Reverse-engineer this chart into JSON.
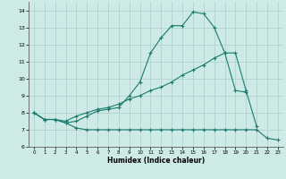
{
  "xlabel": "Humidex (Indice chaleur)",
  "x": [
    0,
    1,
    2,
    3,
    4,
    5,
    6,
    7,
    8,
    9,
    10,
    11,
    12,
    13,
    14,
    15,
    16,
    17,
    18,
    19,
    20,
    21,
    22,
    23
  ],
  "line1_y": [
    8.0,
    7.6,
    7.6,
    7.4,
    7.1,
    7.0,
    7.0,
    7.0,
    7.0,
    7.0,
    7.0,
    7.0,
    7.0,
    7.0,
    7.0,
    7.0,
    7.0,
    7.0,
    7.0,
    7.0,
    7.0,
    7.0,
    6.5,
    6.4
  ],
  "line2_y": [
    8.0,
    7.6,
    7.6,
    7.4,
    7.5,
    7.8,
    8.1,
    8.2,
    8.3,
    9.0,
    9.8,
    11.5,
    12.4,
    13.1,
    13.1,
    13.9,
    13.8,
    13.0,
    11.5,
    11.5,
    9.3,
    7.2,
    null,
    null
  ],
  "line3_y": [
    8.0,
    7.6,
    7.6,
    7.5,
    7.8,
    8.0,
    8.2,
    8.3,
    8.5,
    8.8,
    9.0,
    9.3,
    9.5,
    9.8,
    10.2,
    10.5,
    10.8,
    11.2,
    11.5,
    9.3,
    9.2,
    null,
    null,
    null
  ],
  "bg_color": "#ceeae7",
  "grid_color": "#aacfcc",
  "line_color": "#1a7a6e",
  "ylim": [
    6,
    14.5
  ],
  "xlim": [
    -0.5,
    23.5
  ],
  "yticks": [
    6,
    7,
    8,
    9,
    10,
    11,
    12,
    13,
    14
  ],
  "xticks": [
    0,
    1,
    2,
    3,
    4,
    5,
    6,
    7,
    8,
    9,
    10,
    11,
    12,
    13,
    14,
    15,
    16,
    17,
    18,
    19,
    20,
    21,
    22,
    23
  ]
}
